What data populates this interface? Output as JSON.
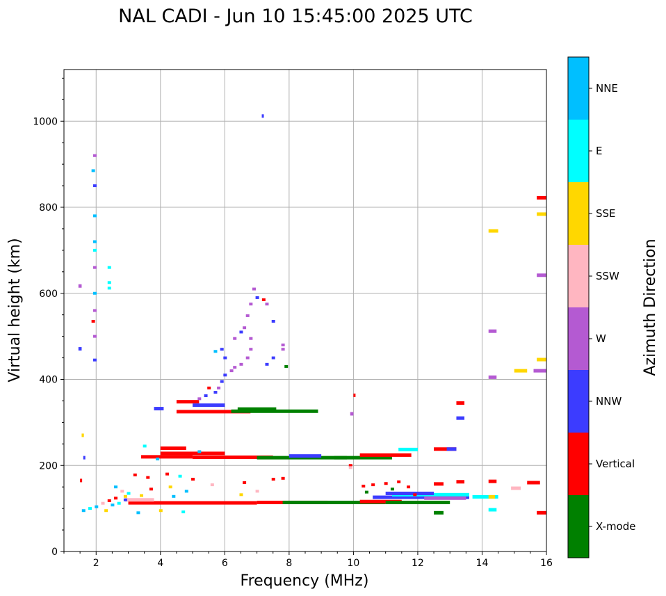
{
  "chart_data": {
    "type": "scatter",
    "title": "NAL CADI - Jun 10 15:45:00 2025 UTC",
    "xlabel": "Frequency (MHz)",
    "ylabel": "Virtual height (km)",
    "xlim": [
      1,
      16
    ],
    "ylim": [
      0,
      1120
    ],
    "grid": true,
    "xticks": [
      2,
      4,
      6,
      8,
      10,
      12,
      14,
      16
    ],
    "yticks": [
      0,
      200,
      400,
      600,
      800,
      1000
    ],
    "colorbar": {
      "label": "Azimuth Direction",
      "categories": [
        "X-mode",
        "Vertical",
        "NNW",
        "W",
        "SSW",
        "SSE",
        "E",
        "NNE"
      ],
      "colors": {
        "X-mode": "#008000",
        "Vertical": "#ff0000",
        "NNW": "#3c3cff",
        "W": "#b45ad2",
        "SSW": "#ffb6c1",
        "SSE": "#ffd700",
        "E": "#00ffff",
        "NNE": "#00bfff"
      }
    },
    "segments": [
      {
        "series": "Vertical",
        "f0": 3.0,
        "f1": 7.0,
        "h": 113
      },
      {
        "series": "Vertical",
        "f0": 7.0,
        "f1": 9.2,
        "h": 114
      },
      {
        "series": "X-mode",
        "f0": 7.8,
        "f1": 11.0,
        "h": 114
      },
      {
        "series": "Vertical",
        "f0": 10.2,
        "f1": 11.5,
        "h": 116
      },
      {
        "series": "X-mode",
        "f0": 11.0,
        "f1": 13.0,
        "h": 114
      },
      {
        "series": "NNW",
        "f0": 10.6,
        "f1": 13.6,
        "h": 126
      },
      {
        "series": "E",
        "f0": 11.2,
        "f1": 13.6,
        "h": 132
      },
      {
        "series": "NNW",
        "f0": 11.0,
        "f1": 12.5,
        "h": 135
      },
      {
        "series": "W",
        "f0": 12.2,
        "f1": 13.5,
        "h": 124
      },
      {
        "series": "E",
        "f0": 13.7,
        "f1": 14.5,
        "h": 127
      },
      {
        "series": "SSE",
        "f0": 14.2,
        "f1": 14.4,
        "h": 127
      },
      {
        "series": "SSW",
        "f0": 2.9,
        "f1": 3.8,
        "h": 120
      },
      {
        "series": "Vertical",
        "f0": 1.5,
        "f1": 1.55,
        "h": 165
      },
      {
        "series": "Vertical",
        "f0": 3.4,
        "f1": 5.0,
        "h": 220
      },
      {
        "series": "Vertical",
        "f0": 5.0,
        "f1": 7.5,
        "h": 219
      },
      {
        "series": "X-mode",
        "f0": 7.0,
        "f1": 9.8,
        "h": 218
      },
      {
        "series": "X-mode",
        "f0": 9.4,
        "f1": 11.2,
        "h": 218
      },
      {
        "series": "Vertical",
        "f0": 10.2,
        "f1": 11.8,
        "h": 224
      },
      {
        "series": "Vertical",
        "f0": 4.0,
        "f1": 6.0,
        "h": 228
      },
      {
        "series": "NNW",
        "f0": 8.0,
        "f1": 9.0,
        "h": 222
      },
      {
        "series": "Vertical",
        "f0": 4.0,
        "f1": 4.8,
        "h": 240
      },
      {
        "series": "E",
        "f0": 11.4,
        "f1": 12.0,
        "h": 237
      },
      {
        "series": "Vertical",
        "f0": 12.5,
        "f1": 13.2,
        "h": 238
      },
      {
        "series": "NNW",
        "f0": 12.9,
        "f1": 13.2,
        "h": 238
      },
      {
        "series": "Vertical",
        "f0": 4.5,
        "f1": 6.8,
        "h": 325
      },
      {
        "series": "X-mode",
        "f0": 6.2,
        "f1": 8.9,
        "h": 326
      },
      {
        "series": "X-mode",
        "f0": 6.4,
        "f1": 7.6,
        "h": 331
      },
      {
        "series": "Vertical",
        "f0": 4.5,
        "f1": 5.2,
        "h": 348
      },
      {
        "series": "NNW",
        "f0": 5.0,
        "f1": 6.0,
        "h": 340
      },
      {
        "series": "NNW",
        "f0": 3.8,
        "f1": 4.1,
        "h": 332
      },
      {
        "series": "Vertical",
        "f0": 10.0,
        "f1": 10.05,
        "h": 363
      },
      {
        "series": "W",
        "f0": 9.9,
        "f1": 10.0,
        "h": 320
      },
      {
        "series": "Vertical",
        "f0": 13.2,
        "f1": 13.45,
        "h": 345
      },
      {
        "series": "NNW",
        "f0": 13.2,
        "f1": 13.45,
        "h": 310
      },
      {
        "series": "SSE",
        "f0": 15.0,
        "f1": 15.4,
        "h": 420
      },
      {
        "series": "W",
        "f0": 15.6,
        "f1": 16.0,
        "h": 420
      },
      {
        "series": "SSE",
        "f0": 15.7,
        "f1": 16.0,
        "h": 446
      },
      {
        "series": "Vertical",
        "f0": 15.7,
        "f1": 16.0,
        "h": 822
      },
      {
        "series": "SSE",
        "f0": 15.7,
        "f1": 16.0,
        "h": 784
      },
      {
        "series": "W",
        "f0": 15.7,
        "f1": 16.0,
        "h": 642
      },
      {
        "series": "Vertical",
        "f0": 15.7,
        "f1": 16.0,
        "h": 90
      },
      {
        "series": "Vertical",
        "f0": 15.4,
        "f1": 15.8,
        "h": 160
      },
      {
        "series": "SSW",
        "f0": 14.9,
        "f1": 15.2,
        "h": 147
      },
      {
        "series": "E",
        "f0": 14.2,
        "f1": 14.45,
        "h": 97
      },
      {
        "series": "Vertical",
        "f0": 14.2,
        "f1": 14.45,
        "h": 163
      },
      {
        "series": "W",
        "f0": 14.2,
        "f1": 14.45,
        "h": 512
      },
      {
        "series": "W",
        "f0": 14.2,
        "f1": 14.45,
        "h": 405
      },
      {
        "series": "SSE",
        "f0": 14.2,
        "f1": 14.5,
        "h": 745
      },
      {
        "series": "Vertical",
        "f0": 12.5,
        "f1": 12.8,
        "h": 157
      },
      {
        "series": "X-mode",
        "f0": 12.5,
        "f1": 12.8,
        "h": 90
      },
      {
        "series": "Vertical",
        "f0": 13.2,
        "f1": 13.45,
        "h": 162
      },
      {
        "series": "NNW",
        "f0": 7.15,
        "f1": 7.2,
        "h": 1012
      },
      {
        "series": "W",
        "f0": 1.45,
        "f1": 1.55,
        "h": 617
      },
      {
        "series": "NNW",
        "f0": 1.45,
        "f1": 1.55,
        "h": 471
      },
      {
        "series": "SSE",
        "f0": 1.55,
        "f1": 1.62,
        "h": 270
      },
      {
        "series": "NNW",
        "f0": 1.6,
        "f1": 1.65,
        "h": 218
      }
    ],
    "points": [
      {
        "series": "NNW",
        "f": 1.95,
        "h": 850
      },
      {
        "series": "W",
        "f": 1.95,
        "h": 920
      },
      {
        "series": "NNE",
        "f": 1.9,
        "h": 885
      },
      {
        "series": "NNE",
        "f": 1.95,
        "h": 780
      },
      {
        "series": "NNE",
        "f": 1.95,
        "h": 720
      },
      {
        "series": "E",
        "f": 1.95,
        "h": 700
      },
      {
        "series": "W",
        "f": 1.95,
        "h": 660
      },
      {
        "series": "NNE",
        "f": 1.95,
        "h": 600
      },
      {
        "series": "W",
        "f": 1.95,
        "h": 560
      },
      {
        "series": "Vertical",
        "f": 1.9,
        "h": 535
      },
      {
        "series": "W",
        "f": 1.95,
        "h": 500
      },
      {
        "series": "NNW",
        "f": 1.95,
        "h": 445
      },
      {
        "series": "E",
        "f": 2.4,
        "h": 660
      },
      {
        "series": "E",
        "f": 2.4,
        "h": 625
      },
      {
        "series": "E",
        "f": 2.4,
        "h": 612
      },
      {
        "series": "W",
        "f": 5.8,
        "h": 380
      },
      {
        "series": "NNW",
        "f": 5.9,
        "h": 395
      },
      {
        "series": "NNW",
        "f": 6.0,
        "h": 410
      },
      {
        "series": "W",
        "f": 6.2,
        "h": 420
      },
      {
        "series": "W",
        "f": 6.3,
        "h": 428
      },
      {
        "series": "W",
        "f": 6.5,
        "h": 435
      },
      {
        "series": "W",
        "f": 6.7,
        "h": 450
      },
      {
        "series": "W",
        "f": 6.8,
        "h": 470
      },
      {
        "series": "W",
        "f": 6.8,
        "h": 495
      },
      {
        "series": "W",
        "f": 6.6,
        "h": 520
      },
      {
        "series": "W",
        "f": 6.7,
        "h": 548
      },
      {
        "series": "W",
        "f": 6.8,
        "h": 575
      },
      {
        "series": "W",
        "f": 6.9,
        "h": 610
      },
      {
        "series": "NNW",
        "f": 7.0,
        "h": 590
      },
      {
        "series": "W",
        "f": 7.3,
        "h": 575
      },
      {
        "series": "Vertical",
        "f": 7.2,
        "h": 585
      },
      {
        "series": "NNW",
        "f": 7.5,
        "h": 535
      },
      {
        "series": "W",
        "f": 7.8,
        "h": 480
      },
      {
        "series": "W",
        "f": 7.8,
        "h": 470
      },
      {
        "series": "NNW",
        "f": 7.5,
        "h": 450
      },
      {
        "series": "NNW",
        "f": 7.3,
        "h": 435
      },
      {
        "series": "X-mode",
        "f": 7.9,
        "h": 430
      },
      {
        "series": "NNW",
        "f": 6.5,
        "h": 510
      },
      {
        "series": "W",
        "f": 6.3,
        "h": 495
      },
      {
        "series": "NNW",
        "f": 5.9,
        "h": 470
      },
      {
        "series": "NNE",
        "f": 5.7,
        "h": 465
      },
      {
        "series": "NNW",
        "f": 6.0,
        "h": 450
      },
      {
        "series": "Vertical",
        "f": 5.5,
        "h": 380
      },
      {
        "series": "NNW",
        "f": 5.4,
        "h": 362
      },
      {
        "series": "NNW",
        "f": 5.7,
        "h": 370
      },
      {
        "series": "W",
        "f": 5.2,
        "h": 355
      },
      {
        "series": "NNE",
        "f": 3.9,
        "h": 215
      },
      {
        "series": "E",
        "f": 3.5,
        "h": 245
      },
      {
        "series": "NNE",
        "f": 5.2,
        "h": 232
      },
      {
        "series": "Vertical",
        "f": 3.2,
        "h": 178
      },
      {
        "series": "Vertical",
        "f": 3.6,
        "h": 172
      },
      {
        "series": "Vertical",
        "f": 4.2,
        "h": 180
      },
      {
        "series": "E",
        "f": 4.6,
        "h": 175
      },
      {
        "series": "Vertical",
        "f": 5.0,
        "h": 168
      },
      {
        "series": "SSE",
        "f": 4.3,
        "h": 150
      },
      {
        "series": "NNE",
        "f": 4.8,
        "h": 140
      },
      {
        "series": "SSW",
        "f": 5.6,
        "h": 155
      },
      {
        "series": "Vertical",
        "f": 6.6,
        "h": 160
      },
      {
        "series": "Vertical",
        "f": 7.5,
        "h": 168
      },
      {
        "series": "Vertical",
        "f": 7.8,
        "h": 170
      },
      {
        "series": "SSW",
        "f": 7.0,
        "h": 140
      },
      {
        "series": "SSE",
        "f": 6.5,
        "h": 132
      },
      {
        "series": "NNE",
        "f": 2.6,
        "h": 150
      },
      {
        "series": "SSW",
        "f": 2.8,
        "h": 140
      },
      {
        "series": "E",
        "f": 3.0,
        "h": 135
      },
      {
        "series": "SSE",
        "f": 3.4,
        "h": 130
      },
      {
        "series": "Vertical",
        "f": 3.7,
        "h": 145
      },
      {
        "series": "NNE",
        "f": 4.4,
        "h": 128
      },
      {
        "series": "SSE",
        "f": 4.0,
        "h": 95
      },
      {
        "series": "E",
        "f": 4.7,
        "h": 92
      },
      {
        "series": "NNE",
        "f": 3.3,
        "h": 90
      },
      {
        "series": "Vertical",
        "f": 9.9,
        "h": 200
      },
      {
        "series": "SSW",
        "f": 9.9,
        "h": 195
      },
      {
        "series": "Vertical",
        "f": 10.3,
        "h": 152
      },
      {
        "series": "Vertical",
        "f": 10.6,
        "h": 155
      },
      {
        "series": "Vertical",
        "f": 11.0,
        "h": 158
      },
      {
        "series": "Vertical",
        "f": 11.4,
        "h": 162
      },
      {
        "series": "Vertical",
        "f": 11.7,
        "h": 150
      },
      {
        "series": "X-mode",
        "f": 10.4,
        "h": 138
      },
      {
        "series": "X-mode",
        "f": 11.2,
        "h": 145
      },
      {
        "series": "Vertical",
        "f": 11.9,
        "h": 132
      },
      {
        "series": "NNE",
        "f": 1.6,
        "h": 95
      },
      {
        "series": "E",
        "f": 1.8,
        "h": 100
      },
      {
        "series": "NNE",
        "f": 2.0,
        "h": 104
      },
      {
        "series": "SSE",
        "f": 2.3,
        "h": 95
      },
      {
        "series": "NNE",
        "f": 2.5,
        "h": 108
      },
      {
        "series": "Vertical",
        "f": 2.4,
        "h": 118
      },
      {
        "series": "SSW",
        "f": 2.2,
        "h": 112
      },
      {
        "series": "E",
        "f": 2.7,
        "h": 112
      },
      {
        "series": "Vertical",
        "f": 2.6,
        "h": 124
      },
      {
        "series": "SSE",
        "f": 2.9,
        "h": 128
      },
      {
        "series": "NNW",
        "f": 2.9,
        "h": 120
      }
    ]
  }
}
